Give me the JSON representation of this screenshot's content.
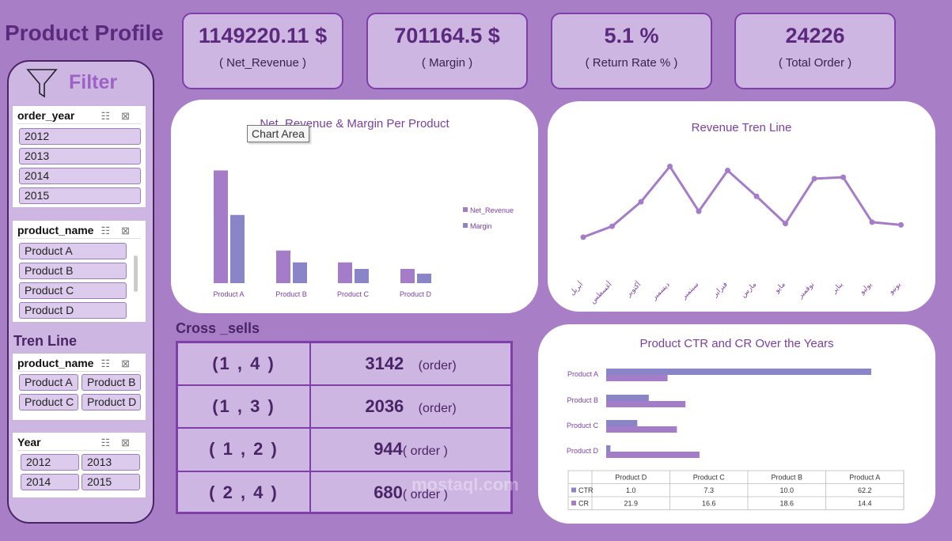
{
  "page": {
    "title": "Product Profile"
  },
  "kpis": [
    {
      "value": "1149220.11 $",
      "label": "( Net_Revenue )"
    },
    {
      "value": "701164.5 $",
      "label": "( Margin )"
    },
    {
      "value": "5.1 %",
      "label": "( Return Rate % )"
    },
    {
      "value": "24226",
      "label": "( Total Order )"
    }
  ],
  "filter": {
    "title": "Filter",
    "slicer_order_year": {
      "header": "order_year",
      "items": [
        "2012",
        "2013",
        "2014",
        "2015"
      ]
    },
    "slicer_product_name": {
      "header": "product_name",
      "items": [
        "Product A",
        "Product B",
        "Product C",
        "Product D"
      ]
    },
    "tren_line_label": "Tren Line",
    "slicer_product_name_2": {
      "header": "product_name",
      "items": [
        "Product A",
        "Product B",
        "Product C",
        "Product D"
      ]
    },
    "slicer_year": {
      "header": "Year",
      "items": [
        "2012",
        "2013",
        "2014",
        "2015"
      ]
    }
  },
  "tooltip": "Chart Area",
  "cross_sells": {
    "title": "Cross _sells",
    "rows": [
      {
        "pair": "(1 , 4 )",
        "orders": "3142",
        "unit": "(order)"
      },
      {
        "pair": "(1 , 3 )",
        "orders": "2036",
        "unit": "(order)"
      },
      {
        "pair": "( 1 , 2 )",
        "orders": "944",
        "unit": "( order )"
      },
      {
        "pair": "( 2 , 4 )",
        "orders": "680",
        "unit": "( order )"
      }
    ]
  },
  "watermark": "mostaql.com",
  "colors": {
    "background": "#a87fc7",
    "revenue_bar": "#a57cc8",
    "margin_bar": "#8a84c8",
    "accent": "#7e3fa8"
  },
  "chart_data": [
    {
      "type": "bar",
      "title": "Net_Revenue & Margin Per Product",
      "categories": [
        "Product A",
        "Product B",
        "Product C",
        "Product D"
      ],
      "series": [
        {
          "name": "Net_Revenue",
          "values": [
            570000,
            165000,
            105000,
            72000
          ]
        },
        {
          "name": "Margin",
          "values": [
            345000,
            105000,
            72000,
            48000
          ]
        }
      ],
      "ylim": [
        0,
        600000
      ],
      "legend": "right"
    },
    {
      "type": "line",
      "title": "Revenue Tren Line",
      "categories": [
        "أبريل",
        "أغسطس",
        "أكتوبر",
        "ديسمبر",
        "سبتمبر",
        "فبراير",
        "مارس",
        "مايو",
        "نوفمبر",
        "يناير",
        "يوليو",
        "يونيو"
      ],
      "values": [
        88000,
        96000,
        114000,
        140000,
        107000,
        137000,
        118000,
        98000,
        131000,
        132000,
        99000,
        97000
      ],
      "ylim": [
        60000,
        160000
      ]
    },
    {
      "type": "bar",
      "orientation": "horizontal",
      "title": "Product CTR and CR Over the Years",
      "categories": [
        "Product D",
        "Product C",
        "Product B",
        "Product A"
      ],
      "series": [
        {
          "name": "CTR",
          "values": [
            1.0,
            7.3,
            10.0,
            62.2
          ]
        },
        {
          "name": "CR",
          "values": [
            21.9,
            16.6,
            18.6,
            14.4
          ]
        }
      ],
      "xlim": [
        0,
        65
      ],
      "data_table": true
    }
  ]
}
